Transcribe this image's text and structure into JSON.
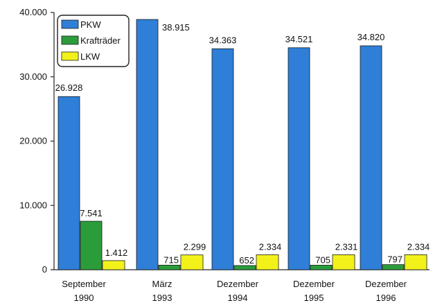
{
  "chart_data": {
    "type": "bar",
    "title": "",
    "xlabel": "",
    "ylabel": "",
    "ylim": [
      0,
      40000
    ],
    "yticks": [
      0,
      10000,
      20000,
      30000,
      40000
    ],
    "ytick_labels": [
      "0",
      "10.000",
      "20.000",
      "30.000",
      "40.000"
    ],
    "grid": false,
    "legend_position": "top-left",
    "categories": [
      [
        "September",
        "1990"
      ],
      [
        "März",
        "1993"
      ],
      [
        "Dezember",
        "1994"
      ],
      [
        "Dezember",
        "1995"
      ],
      [
        "Dezember",
        "1996"
      ]
    ],
    "series": [
      {
        "name": "PKW",
        "color": "#2f7fd8",
        "values": [
          26928,
          38915,
          34363,
          34521,
          34820
        ],
        "labels": [
          "26.928",
          "38.915",
          "34.363",
          "34.521",
          "34.820"
        ]
      },
      {
        "name": "Krafträder",
        "color": "#2a9d3a",
        "values": [
          7541,
          715,
          652,
          705,
          797
        ],
        "labels": [
          "7.541",
          "715",
          "652",
          "705",
          "797"
        ]
      },
      {
        "name": "LKW",
        "color": "#f2f21a",
        "values": [
          1412,
          2299,
          2334,
          2331,
          2334
        ],
        "labels": [
          "1.412",
          "2.299",
          "2.334",
          "2.331",
          "2.334"
        ]
      }
    ]
  }
}
